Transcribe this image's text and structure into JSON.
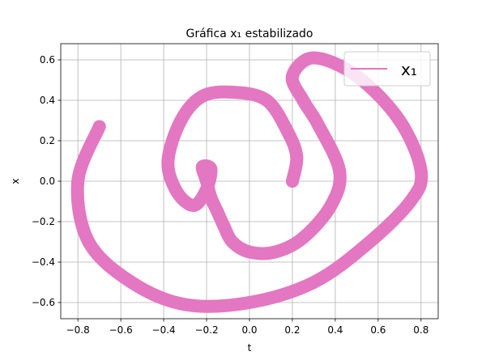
{
  "chart_data": {
    "type": "line",
    "title": "Gráfica x₁ estabilizado",
    "xlabel": "t",
    "ylabel": "x",
    "xlim": [
      -0.88,
      0.88
    ],
    "ylim": [
      -0.68,
      0.68
    ],
    "xticks": [
      -0.8,
      -0.6,
      -0.4,
      -0.2,
      0.0,
      0.2,
      0.4,
      0.6,
      0.8
    ],
    "xtick_labels": [
      "−0.8",
      "−0.6",
      "−0.4",
      "−0.2",
      "0.0",
      "0.2",
      "0.4",
      "0.6",
      "0.8"
    ],
    "yticks": [
      -0.6,
      -0.4,
      -0.2,
      0.0,
      0.2,
      0.4,
      0.6
    ],
    "ytick_labels": [
      "−0.6",
      "−0.4",
      "−0.2",
      "0.0",
      "0.2",
      "0.4",
      "0.6"
    ],
    "grid": true,
    "legend_position": "top-right",
    "series": [
      {
        "name": "x₁",
        "color": "#e377c2",
        "x": [
          -0.7,
          -0.8,
          -0.75,
          -0.55,
          -0.3,
          0.0,
          0.3,
          0.55,
          0.75,
          0.8,
          0.7,
          0.5,
          0.3,
          0.2,
          0.25,
          0.32,
          0.42,
          0.38,
          0.25,
          0.12,
          0.0,
          -0.08,
          -0.12,
          -0.15,
          -0.18,
          -0.2,
          -0.22,
          -0.18,
          -0.2,
          -0.26,
          -0.34,
          -0.38,
          -0.32,
          -0.22,
          -0.08,
          0.08,
          0.18,
          0.22,
          0.2
        ],
        "y": [
          0.27,
          0.0,
          -0.3,
          -0.5,
          -0.61,
          -0.6,
          -0.5,
          -0.31,
          -0.1,
          0.05,
          0.3,
          0.52,
          0.61,
          0.52,
          0.4,
          0.28,
          0.05,
          -0.12,
          -0.28,
          -0.35,
          -0.35,
          -0.3,
          -0.22,
          -0.15,
          -0.08,
          0.0,
          0.07,
          0.06,
          -0.04,
          -0.12,
          -0.05,
          0.1,
          0.3,
          0.42,
          0.44,
          0.4,
          0.24,
          0.12,
          0.0
        ]
      }
    ]
  }
}
